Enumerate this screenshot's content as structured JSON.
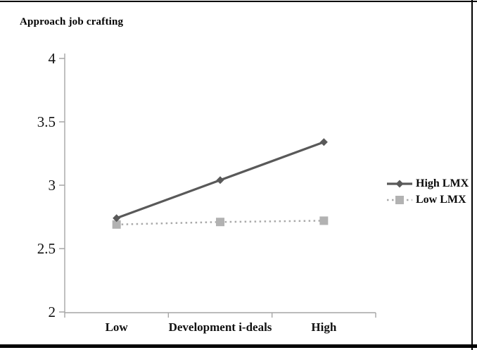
{
  "chart_data": {
    "type": "line",
    "title": "Approach job crafting",
    "categories": [
      "Low",
      "Development i-deals",
      "High"
    ],
    "series": [
      {
        "name": "High LMX",
        "values": [
          2.74,
          3.04,
          3.34
        ],
        "color": "#595959",
        "marker": "diamond",
        "line_style": "solid"
      },
      {
        "name": "Low LMX",
        "values": [
          2.69,
          2.71,
          2.72
        ],
        "color": "#a9a9a9",
        "marker": "square",
        "marker_color": "#b2b2b2",
        "line_style": "dotted"
      }
    ],
    "ylim": [
      2,
      4
    ],
    "yticks": [
      4,
      3.5,
      3,
      2.5,
      2
    ],
    "ytick_labels": [
      "4",
      "3.5",
      "3",
      "2.5",
      "2"
    ],
    "xlabel": "Development i-deals",
    "ylabel": "Approach job crafting",
    "legend_position": "right",
    "grid": false,
    "axis_color": "#a6a6a6",
    "text_color": "#111111"
  }
}
